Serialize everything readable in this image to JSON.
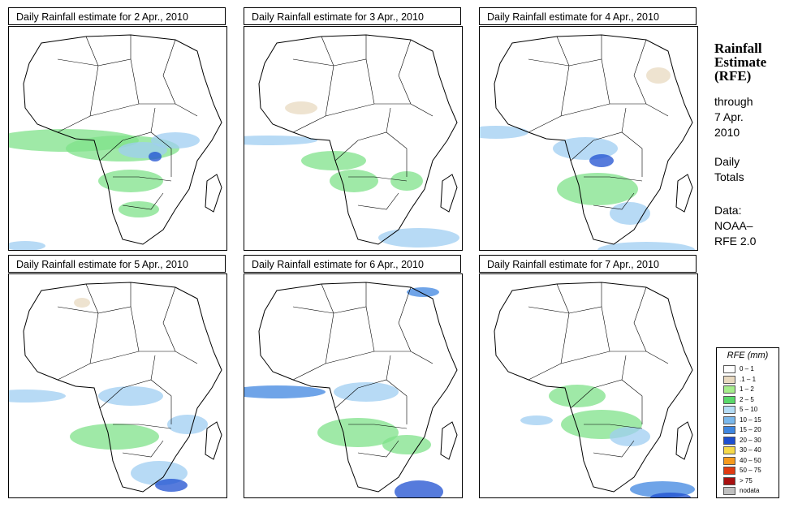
{
  "panels": [
    {
      "title": "Daily Rainfall estimate for  2 Apr., 2010"
    },
    {
      "title": "Daily Rainfall estimate for  3 Apr., 2010"
    },
    {
      "title": "Daily Rainfall estimate for  4 Apr., 2010"
    },
    {
      "title": "Daily Rainfall estimate for  5 Apr., 2010"
    },
    {
      "title": "Daily Rainfall estimate for  6 Apr., 2010"
    },
    {
      "title": "Daily Rainfall estimate for  7 Apr., 2010"
    }
  ],
  "sidebar": {
    "title_line1": "Rainfall",
    "title_line2": "Estimate",
    "title_line3": "(RFE)",
    "through_label": "through",
    "date_line1": "7 Apr.",
    "date_line2": "2010",
    "totals_line1": "Daily",
    "totals_line2": "Totals",
    "data_label": "Data:",
    "source_line1": "NOAA–",
    "source_line2": "RFE 2.0"
  },
  "legend": {
    "title": "RFE (mm)",
    "items": [
      {
        "label": "0 – 1",
        "color": "#ffffff"
      },
      {
        "label": ".1 – 1",
        "color": "#e8d9c0"
      },
      {
        "label": "1 – 2",
        "color": "#a6ee8c"
      },
      {
        "label": "2 – 5",
        "color": "#5ad96a"
      },
      {
        "label": "5 – 10",
        "color": "#b4dcf5"
      },
      {
        "label": "10 – 15",
        "color": "#7ab8ec"
      },
      {
        "label": "15 – 20",
        "color": "#3f86e0"
      },
      {
        "label": "20 – 30",
        "color": "#1d4fd0"
      },
      {
        "label": "30 – 40",
        "color": "#f5d94a"
      },
      {
        "label": "40 – 50",
        "color": "#f59a1e"
      },
      {
        "label": "50 – 75",
        "color": "#e03a12"
      },
      {
        "label": "> 75",
        "color": "#a80f0f"
      },
      {
        "label": "nodata",
        "color": "#c0c0c0"
      }
    ]
  }
}
